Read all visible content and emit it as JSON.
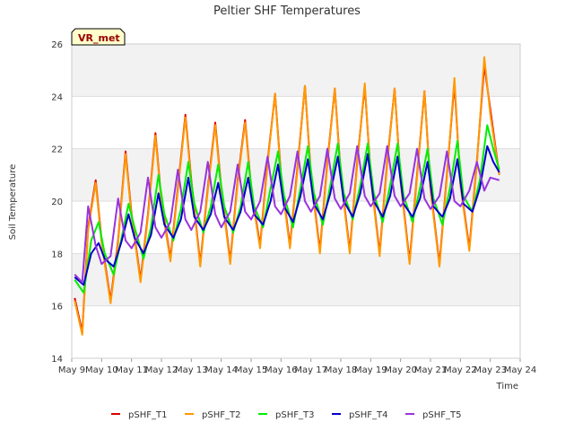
{
  "chart_data": {
    "type": "line",
    "title": "Peltier SHF Temperatures",
    "xlabel": "Time",
    "ylabel": "Soil Temperature",
    "ylim": [
      14,
      26
    ],
    "yticks": [
      14,
      16,
      18,
      20,
      22,
      24,
      26
    ],
    "xlim": [
      9,
      24
    ],
    "xticks": [
      {
        "value": 9,
        "label": "May 9"
      },
      {
        "value": 10,
        "label": "May 10"
      },
      {
        "value": 11,
        "label": "May 11"
      },
      {
        "value": 12,
        "label": "May 12"
      },
      {
        "value": 13,
        "label": "May 13"
      },
      {
        "value": 14,
        "label": "May 14"
      },
      {
        "value": 15,
        "label": "May 15"
      },
      {
        "value": 16,
        "label": "May 16"
      },
      {
        "value": 17,
        "label": "May 17"
      },
      {
        "value": 18,
        "label": "May 18"
      },
      {
        "value": 19,
        "label": "May 19"
      },
      {
        "value": 20,
        "label": "May 20"
      },
      {
        "value": 21,
        "label": "May 21"
      },
      {
        "value": 22,
        "label": "May 22"
      },
      {
        "value": 23,
        "label": "May 23"
      },
      {
        "value": 24,
        "label": "May 24"
      }
    ],
    "shaded_bands": [
      [
        16,
        18
      ],
      [
        20,
        22
      ],
      [
        24,
        26
      ]
    ],
    "legend_position": "bottom",
    "annotation": "VR_met",
    "series": [
      {
        "name": "pSHF_T1",
        "color": "#dd0000",
        "x": [
          9.1,
          9.35,
          9.55,
          9.8,
          10.0,
          10.3,
          10.55,
          10.8,
          11.0,
          11.3,
          11.55,
          11.8,
          12.0,
          12.3,
          12.55,
          12.8,
          13.0,
          13.3,
          13.55,
          13.8,
          14.0,
          14.3,
          14.55,
          14.8,
          15.0,
          15.3,
          15.55,
          15.8,
          16.0,
          16.3,
          16.55,
          16.8,
          17.0,
          17.3,
          17.55,
          17.8,
          18.0,
          18.3,
          18.55,
          18.8,
          19.0,
          19.3,
          19.55,
          19.8,
          20.0,
          20.3,
          20.55,
          20.8,
          21.0,
          21.3,
          21.55,
          21.8,
          22.0,
          22.3,
          22.55,
          22.8,
          23.0,
          23.3
        ],
        "y": [
          16.3,
          15.0,
          19.0,
          20.8,
          18.5,
          16.2,
          18.5,
          21.9,
          19.5,
          17.0,
          19.5,
          22.6,
          20.0,
          17.8,
          20.5,
          23.3,
          20.8,
          17.6,
          20.5,
          23.0,
          20.5,
          17.7,
          20.8,
          23.1,
          20.5,
          18.3,
          21.5,
          24.1,
          21.0,
          18.3,
          21.3,
          24.4,
          21.0,
          18.1,
          21.5,
          24.3,
          21.0,
          18.1,
          21.5,
          24.4,
          21.0,
          18.0,
          21.5,
          24.3,
          20.8,
          17.7,
          21.0,
          24.2,
          20.5,
          17.6,
          21.0,
          24.5,
          20.7,
          18.2,
          21.5,
          25.2,
          23.5,
          21.0
        ]
      },
      {
        "name": "pSHF_T2",
        "color": "#ff9900",
        "x": [
          9.1,
          9.35,
          9.55,
          9.8,
          10.0,
          10.3,
          10.55,
          10.8,
          11.0,
          11.3,
          11.55,
          11.8,
          12.0,
          12.3,
          12.55,
          12.8,
          13.0,
          13.3,
          13.55,
          13.8,
          14.0,
          14.3,
          14.55,
          14.8,
          15.0,
          15.3,
          15.55,
          15.8,
          16.0,
          16.3,
          16.55,
          16.8,
          17.0,
          17.3,
          17.55,
          17.8,
          18.0,
          18.3,
          18.55,
          18.8,
          19.0,
          19.3,
          19.55,
          19.8,
          20.0,
          20.3,
          20.55,
          20.8,
          21.0,
          21.3,
          21.55,
          21.8,
          22.0,
          22.3,
          22.55,
          22.8,
          23.0,
          23.3
        ],
        "y": [
          16.2,
          14.9,
          18.9,
          20.7,
          18.4,
          16.1,
          18.4,
          21.8,
          19.4,
          16.9,
          19.4,
          22.5,
          19.9,
          17.7,
          20.4,
          23.2,
          20.7,
          17.5,
          20.4,
          22.9,
          20.4,
          17.6,
          20.7,
          23.0,
          20.4,
          18.2,
          21.4,
          24.1,
          20.9,
          18.2,
          21.2,
          24.4,
          20.9,
          18.0,
          21.4,
          24.3,
          20.9,
          18.0,
          21.4,
          24.5,
          20.9,
          17.9,
          21.4,
          24.3,
          20.7,
          17.6,
          20.9,
          24.2,
          20.4,
          17.5,
          20.9,
          24.7,
          20.6,
          18.1,
          21.4,
          25.5,
          23.3,
          21.0
        ]
      },
      {
        "name": "pSHF_T3",
        "color": "#00ee00",
        "x": [
          9.1,
          9.4,
          9.65,
          9.9,
          10.1,
          10.4,
          10.65,
          10.9,
          11.1,
          11.4,
          11.65,
          11.9,
          12.1,
          12.4,
          12.65,
          12.9,
          13.1,
          13.4,
          13.65,
          13.9,
          14.1,
          14.4,
          14.65,
          14.9,
          15.1,
          15.4,
          15.65,
          15.9,
          16.1,
          16.4,
          16.65,
          16.9,
          17.1,
          17.4,
          17.65,
          17.9,
          18.1,
          18.4,
          18.65,
          18.9,
          19.1,
          19.4,
          19.65,
          19.9,
          20.1,
          20.4,
          20.65,
          20.9,
          21.1,
          21.4,
          21.65,
          21.9,
          22.1,
          22.4,
          22.65,
          22.9,
          23.1,
          23.3
        ],
        "y": [
          17.0,
          16.5,
          18.5,
          19.2,
          18.0,
          17.2,
          18.5,
          19.9,
          19.0,
          17.8,
          19.0,
          21.0,
          19.5,
          18.5,
          19.7,
          21.5,
          19.9,
          18.8,
          19.8,
          21.4,
          19.8,
          18.8,
          19.8,
          21.5,
          19.8,
          19.0,
          20.5,
          21.9,
          20.2,
          19.0,
          20.5,
          22.1,
          20.3,
          19.1,
          20.6,
          22.2,
          20.3,
          19.3,
          20.6,
          22.2,
          20.3,
          19.2,
          20.6,
          22.2,
          20.2,
          19.2,
          20.5,
          22.0,
          20.1,
          19.1,
          20.5,
          22.3,
          20.2,
          19.6,
          20.8,
          22.9,
          22.0,
          21.2
        ]
      },
      {
        "name": "pSHF_T4",
        "color": "#0000cc",
        "x": [
          9.1,
          9.4,
          9.65,
          9.9,
          10.1,
          10.4,
          10.65,
          10.9,
          11.1,
          11.4,
          11.65,
          11.9,
          12.1,
          12.4,
          12.65,
          12.9,
          13.1,
          13.4,
          13.65,
          13.9,
          14.1,
          14.4,
          14.65,
          14.9,
          15.1,
          15.4,
          15.65,
          15.9,
          16.1,
          16.4,
          16.65,
          16.9,
          17.1,
          17.4,
          17.65,
          17.9,
          18.1,
          18.4,
          18.65,
          18.9,
          19.1,
          19.4,
          19.65,
          19.9,
          20.1,
          20.4,
          20.65,
          20.9,
          21.1,
          21.4,
          21.65,
          21.9,
          22.1,
          22.4,
          22.65,
          22.9,
          23.1,
          23.3
        ],
        "y": [
          17.1,
          16.8,
          18.0,
          18.4,
          17.8,
          17.5,
          18.4,
          19.5,
          18.6,
          18.0,
          18.7,
          20.3,
          19.1,
          18.6,
          19.3,
          20.9,
          19.4,
          18.9,
          19.5,
          20.7,
          19.4,
          18.9,
          19.6,
          20.9,
          19.5,
          19.1,
          20.0,
          21.4,
          19.8,
          19.2,
          20.2,
          21.6,
          19.9,
          19.3,
          20.3,
          21.7,
          20.0,
          19.4,
          20.3,
          21.8,
          20.0,
          19.4,
          20.2,
          21.7,
          19.9,
          19.4,
          20.1,
          21.5,
          19.8,
          19.4,
          20.1,
          21.6,
          19.9,
          19.6,
          20.5,
          22.1,
          21.5,
          21.1
        ]
      },
      {
        "name": "pSHF_T5",
        "color": "#9933dd",
        "x": [
          9.1,
          9.35,
          9.55,
          9.8,
          10.0,
          10.3,
          10.55,
          10.8,
          11.0,
          11.3,
          11.55,
          11.8,
          12.0,
          12.3,
          12.55,
          12.8,
          13.0,
          13.3,
          13.55,
          13.8,
          14.0,
          14.3,
          14.55,
          14.8,
          15.0,
          15.3,
          15.55,
          15.8,
          16.0,
          16.3,
          16.55,
          16.8,
          17.0,
          17.3,
          17.55,
          17.8,
          18.0,
          18.3,
          18.55,
          18.8,
          19.0,
          19.3,
          19.55,
          19.8,
          20.0,
          20.3,
          20.55,
          20.8,
          21.0,
          21.3,
          21.55,
          21.8,
          22.0,
          22.3,
          22.55,
          22.8,
          23.0,
          23.3
        ],
        "y": [
          17.2,
          16.9,
          19.8,
          18.3,
          17.6,
          17.9,
          20.1,
          18.5,
          18.2,
          18.8,
          20.9,
          19.0,
          18.6,
          19.2,
          21.2,
          19.3,
          18.9,
          19.6,
          21.5,
          19.5,
          19.0,
          19.6,
          21.4,
          19.6,
          19.3,
          20.0,
          21.7,
          19.8,
          19.5,
          20.2,
          21.9,
          20.0,
          19.6,
          20.2,
          22.0,
          20.1,
          19.7,
          20.3,
          22.1,
          20.2,
          19.8,
          20.3,
          22.1,
          20.2,
          19.8,
          20.3,
          22.0,
          20.1,
          19.7,
          20.2,
          21.9,
          20.0,
          19.8,
          20.4,
          21.5,
          20.4,
          20.9,
          20.8
        ]
      }
    ]
  }
}
